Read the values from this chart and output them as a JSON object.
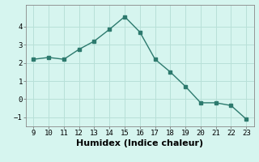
{
  "x": [
    9,
    10,
    11,
    12,
    13,
    14,
    15,
    16,
    17,
    18,
    19,
    20,
    21,
    22,
    23
  ],
  "y": [
    2.2,
    2.3,
    2.2,
    2.75,
    3.2,
    3.85,
    4.55,
    3.7,
    2.2,
    1.5,
    0.7,
    -0.2,
    -0.2,
    -0.35,
    -1.1
  ],
  "xlabel": "Humidex (Indice chaleur)",
  "ylim": [
    -1.5,
    5.2
  ],
  "xlim": [
    8.5,
    23.5
  ],
  "yticks": [
    -1,
    0,
    1,
    2,
    3,
    4
  ],
  "xticks": [
    9,
    10,
    11,
    12,
    13,
    14,
    15,
    16,
    17,
    18,
    19,
    20,
    21,
    22,
    23
  ],
  "line_color": "#2d7a6e",
  "bg_color": "#d6f5ef",
  "grid_color": "#b8e0d8",
  "marker": "s",
  "marker_size": 2.5,
  "line_width": 1.0,
  "xlabel_fontsize": 8,
  "tick_fontsize": 6.5
}
